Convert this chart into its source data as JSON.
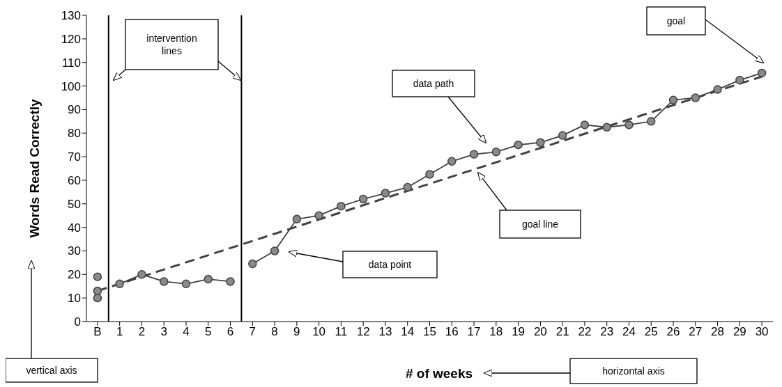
{
  "chart_data": {
    "type": "line",
    "xlabel": "# of weeks",
    "ylabel": "Words Read Correctly",
    "xlim": [
      -0.5,
      30.5
    ],
    "xticks": [
      {
        "value": 0,
        "label": "B"
      },
      1,
      2,
      3,
      4,
      5,
      6,
      7,
      8,
      9,
      10,
      11,
      12,
      13,
      14,
      15,
      16,
      17,
      18,
      19,
      20,
      21,
      22,
      23,
      24,
      25,
      26,
      27,
      28,
      29,
      30
    ],
    "ylim": [
      0,
      130
    ],
    "yticks": [
      0,
      10,
      20,
      30,
      40,
      50,
      60,
      70,
      80,
      90,
      100,
      110,
      120,
      130
    ],
    "marker": "circle",
    "line_style": "solid",
    "series": [
      {
        "type": "scatter",
        "color": "#404040",
        "x": [
          0,
          0,
          0
        ],
        "values": [
          19,
          13,
          10
        ]
      },
      {
        "color": "#404040",
        "x": [
          1,
          2,
          3,
          4,
          5,
          6
        ],
        "values": [
          16,
          20,
          17,
          16,
          18,
          17
        ]
      },
      {
        "color": "#404040",
        "x": [
          7,
          8,
          9,
          10,
          11,
          12,
          13,
          14,
          15,
          16,
          17,
          18,
          19,
          20,
          21,
          22,
          23,
          24,
          25,
          26,
          27,
          28,
          29,
          30
        ],
        "values": [
          24.5,
          30,
          43.5,
          45,
          49,
          52,
          54.5,
          57,
          62.5,
          68,
          71,
          72,
          75,
          76,
          79,
          83.5,
          82.5,
          83.5,
          85,
          94,
          95,
          98.5,
          102.5,
          105.5
        ]
      },
      {
        "color": "#404040",
        "x": [
          0,
          30
        ],
        "values": [
          13,
          104
        ],
        "line_style": "dashed",
        "marker": "none"
      }
    ],
    "ref_lines": [
      {
        "axis": "x",
        "value": 0.5,
        "color": "#000000"
      },
      {
        "axis": "x",
        "value": 6.5,
        "color": "#000000"
      }
    ],
    "annotations": [
      "intervention lines",
      "data path",
      "goal line",
      "data point",
      "goal",
      "vertical axis",
      "horizontal axis"
    ]
  }
}
